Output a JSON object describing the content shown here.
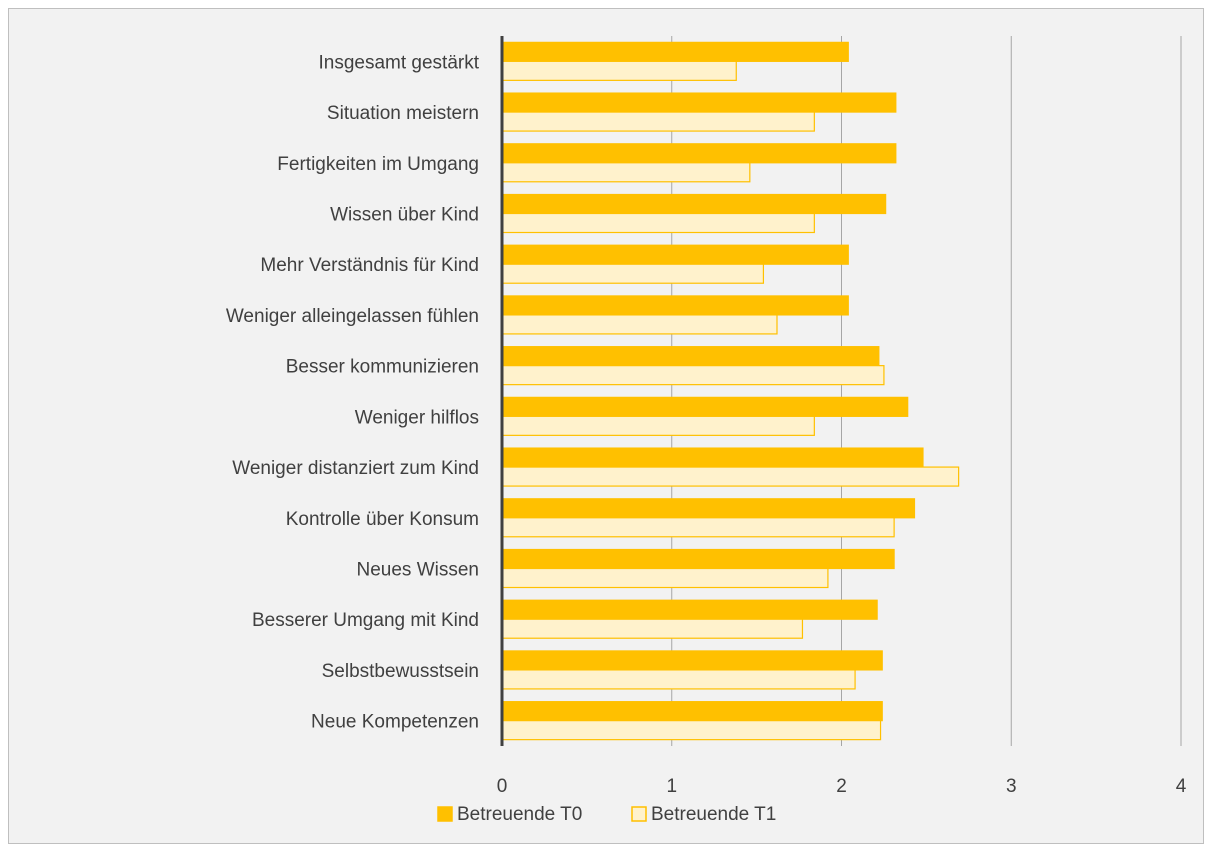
{
  "chart_data": {
    "type": "bar",
    "orientation": "horizontal",
    "categories": [
      "Insgesamt gestärkt",
      "Situation meistern",
      "Fertigkeiten im Umgang",
      "Wissen über Kind",
      "Mehr Verständnis für Kind",
      "Weniger alleingelassen fühlen",
      "Besser kommunizieren",
      "Weniger hilflos",
      "Weniger distanziert zum Kind",
      "Kontrolle über Konsum",
      "Neues Wissen",
      "Besserer Umgang mit Kind",
      "Selbstbewusstsein",
      "Neue Kompetenzen"
    ],
    "series": [
      {
        "name": "Betreuende T0",
        "fill": "#ffc000",
        "stroke": "#ffc000",
        "values": [
          2.04,
          2.32,
          2.32,
          2.26,
          2.04,
          2.04,
          2.22,
          2.39,
          2.48,
          2.43,
          2.31,
          2.21,
          2.24,
          2.24
        ]
      },
      {
        "name": "Betreuende T1",
        "fill": "#fff2cc",
        "stroke": "#ffc000",
        "values": [
          1.38,
          1.84,
          1.46,
          1.84,
          1.54,
          1.62,
          2.25,
          1.84,
          2.69,
          2.31,
          1.92,
          1.77,
          2.08,
          2.23
        ]
      }
    ],
    "x_ticks": [
      "0",
      "1",
      "2",
      "3",
      "4"
    ],
    "xlim": [
      0,
      4
    ],
    "grid": "vertical major gridlines",
    "legend_position": "bottom",
    "background": "#f2f2f2",
    "gridline_color": "#a6a6a6",
    "axis_color": "#404040"
  }
}
